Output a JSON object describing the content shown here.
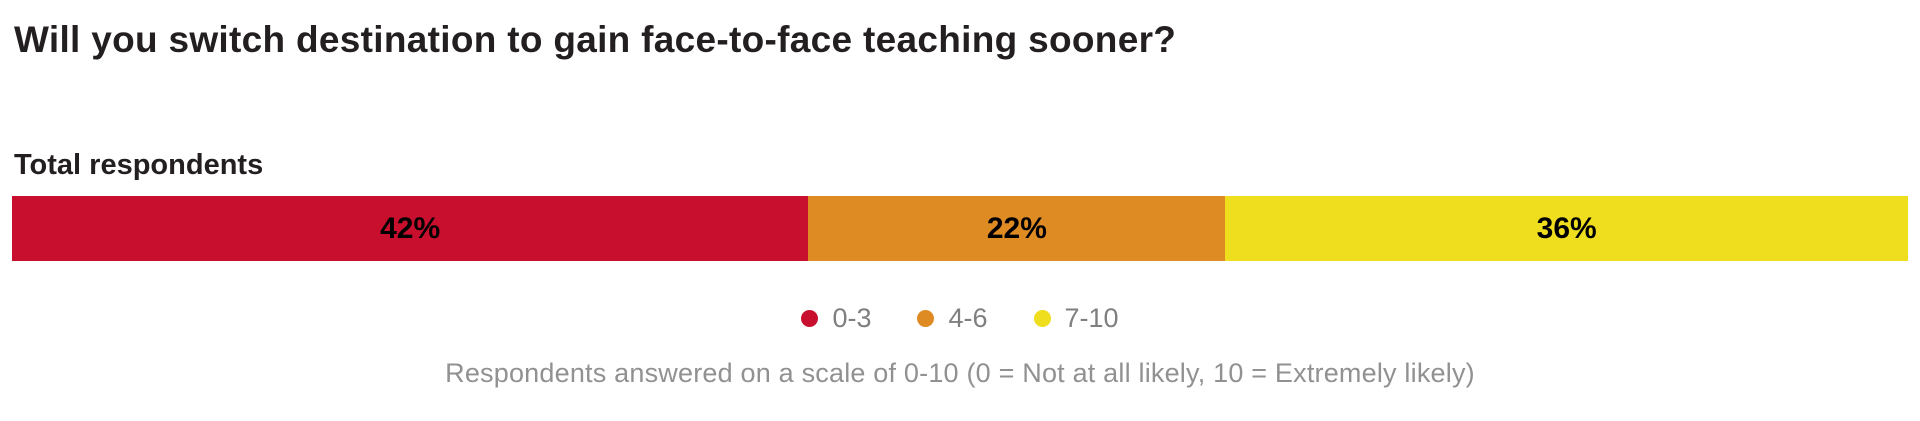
{
  "title": "Will you switch destination to gain face-to-face teaching sooner?",
  "subtitle": "Total respondents",
  "chart_data": {
    "type": "bar",
    "stacked": true,
    "orientation": "horizontal",
    "categories": [
      "Total respondents"
    ],
    "series": [
      {
        "name": "0-3",
        "values": [
          42
        ],
        "color": "#c8102e"
      },
      {
        "name": "4-6",
        "values": [
          22
        ],
        "color": "#df8b24"
      },
      {
        "name": "7-10",
        "values": [
          36
        ],
        "color": "#efde1e"
      }
    ],
    "data_labels": [
      "42%",
      "22%",
      "36%"
    ],
    "xlim": [
      0,
      100
    ],
    "grid": false,
    "legend_position": "bottom-center",
    "note": "Respondents answered on a scale of 0-10 (0 = Not at all likely, 10 = Extremely likely)"
  }
}
